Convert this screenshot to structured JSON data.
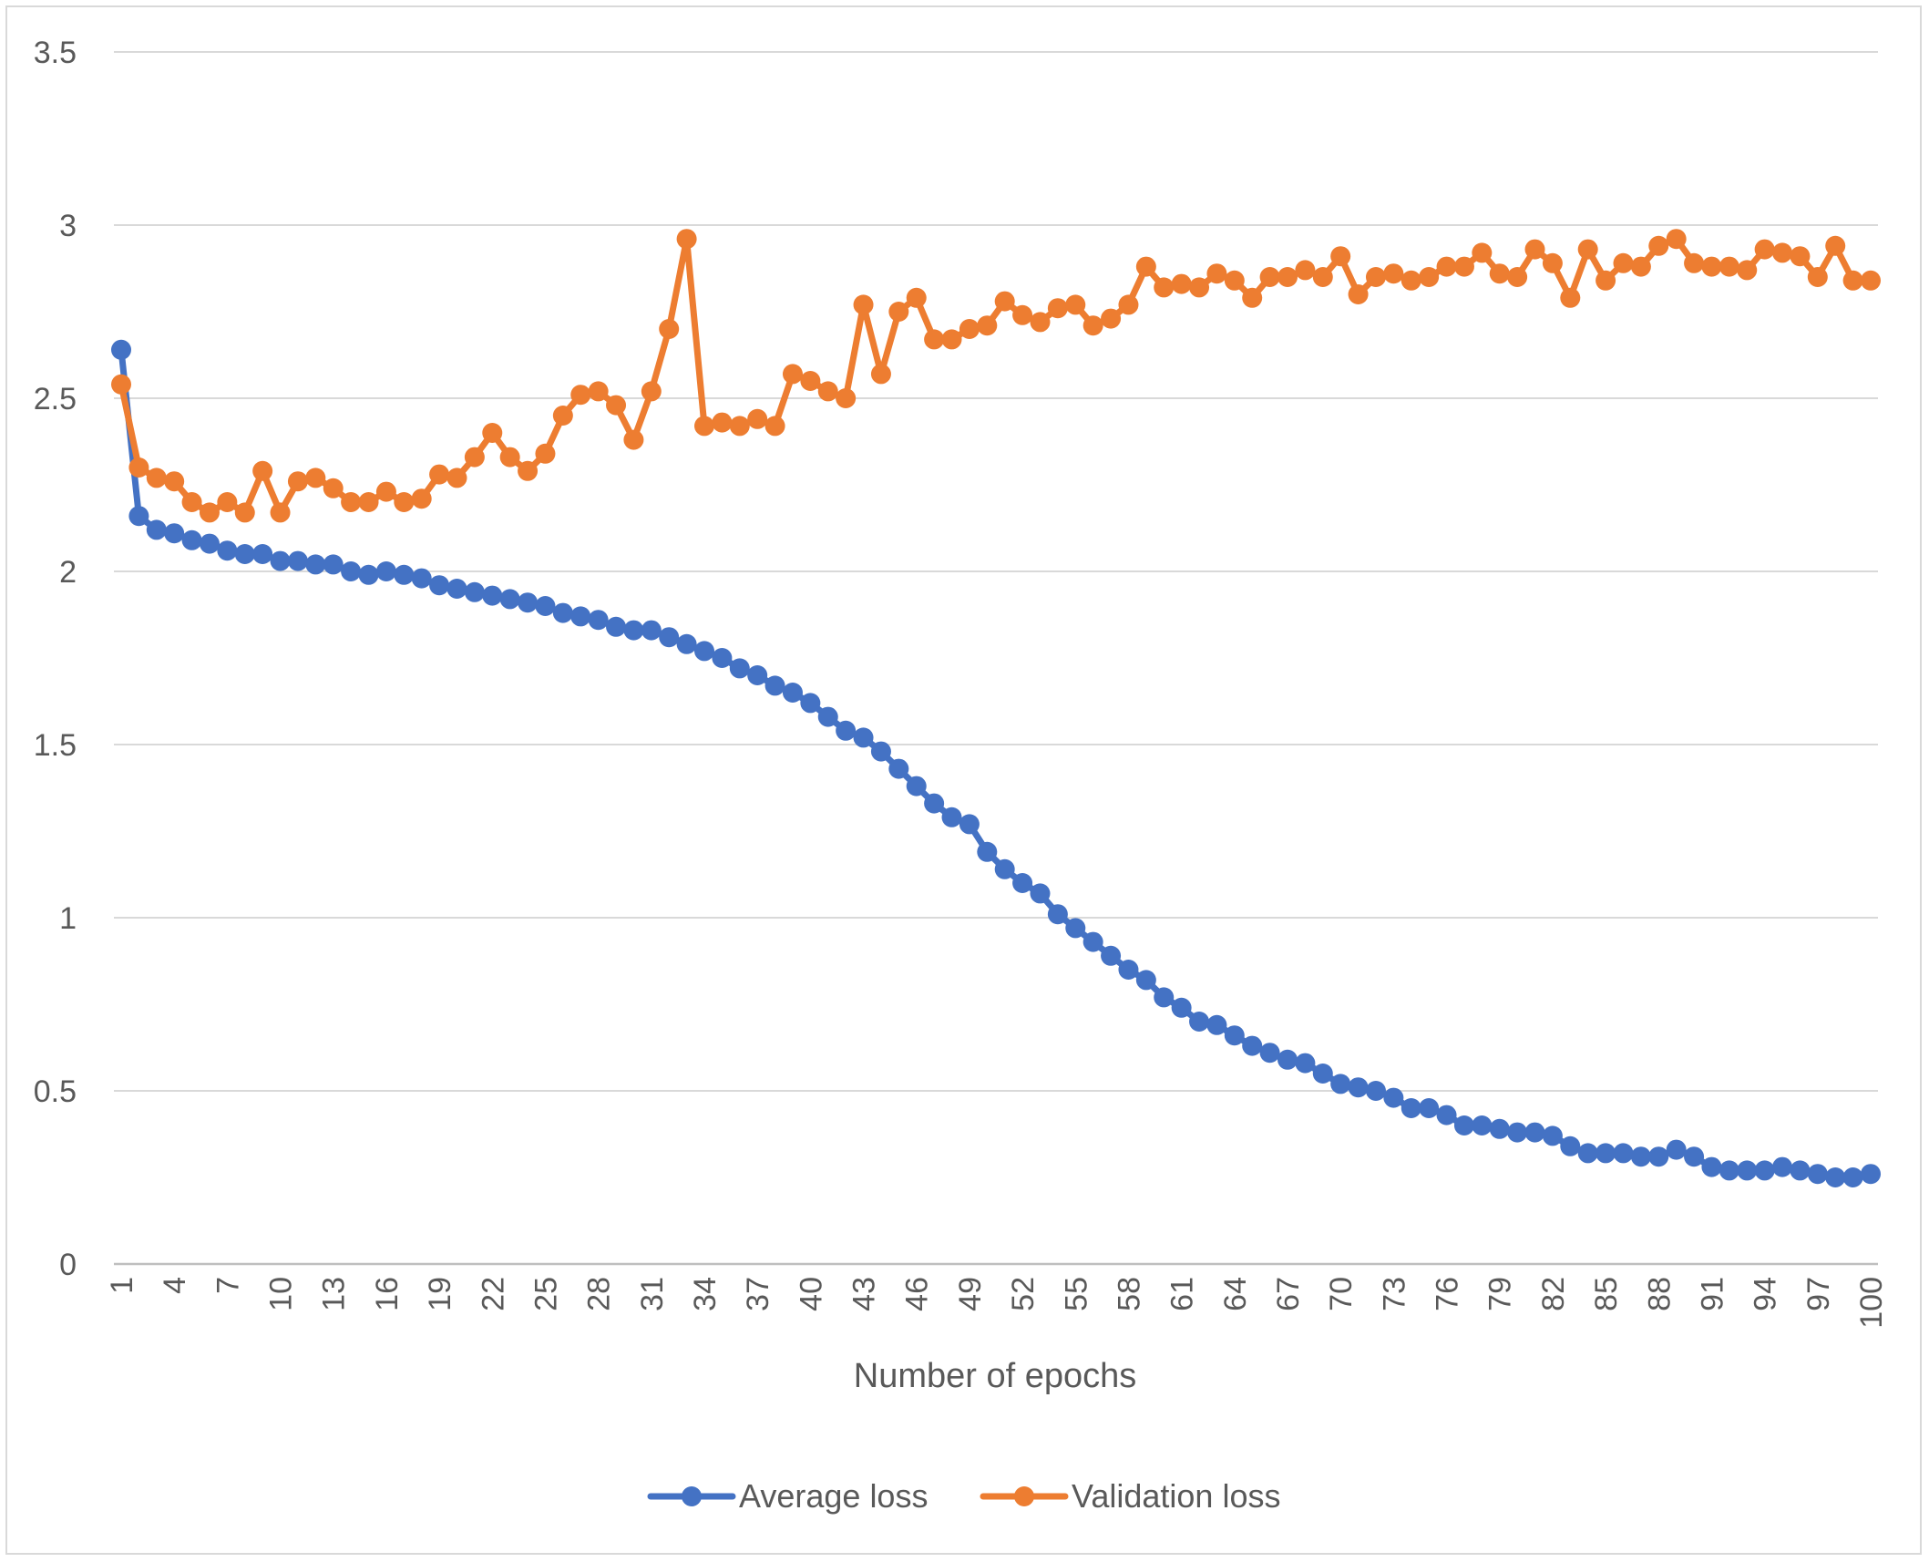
{
  "chart_data": {
    "type": "line",
    "title": "",
    "xlabel": "Number of epochs",
    "ylabel": "",
    "ylim": [
      0,
      3.5
    ],
    "yticks": [
      "0",
      "0.5",
      "1",
      "1.5",
      "2",
      "2.5",
      "3",
      "3.5"
    ],
    "xtick_labels": [
      1,
      4,
      7,
      10,
      13,
      16,
      19,
      22,
      25,
      28,
      31,
      34,
      37,
      40,
      43,
      46,
      49,
      52,
      55,
      58,
      61,
      64,
      67,
      70,
      73,
      76,
      79,
      82,
      85,
      88,
      91,
      94,
      97,
      100
    ],
    "x": [
      1,
      2,
      3,
      4,
      5,
      6,
      7,
      8,
      9,
      10,
      11,
      12,
      13,
      14,
      15,
      16,
      17,
      18,
      19,
      20,
      21,
      22,
      23,
      24,
      25,
      26,
      27,
      28,
      29,
      30,
      31,
      32,
      33,
      34,
      35,
      36,
      37,
      38,
      39,
      40,
      41,
      42,
      43,
      44,
      45,
      46,
      47,
      48,
      49,
      50,
      51,
      52,
      53,
      54,
      55,
      56,
      57,
      58,
      59,
      60,
      61,
      62,
      63,
      64,
      65,
      66,
      67,
      68,
      69,
      70,
      71,
      72,
      73,
      74,
      75,
      76,
      77,
      78,
      79,
      80,
      81,
      82,
      83,
      84,
      85,
      86,
      87,
      88,
      89,
      90,
      91,
      92,
      93,
      94,
      95,
      96,
      97,
      98,
      99,
      100
    ],
    "grid": true,
    "legend_position": "bottom",
    "series": [
      {
        "name": "Average loss",
        "color": "#4472c4",
        "values": [
          2.64,
          2.16,
          2.12,
          2.11,
          2.09,
          2.08,
          2.06,
          2.05,
          2.05,
          2.03,
          2.03,
          2.02,
          2.02,
          2.0,
          1.99,
          2.0,
          1.99,
          1.98,
          1.96,
          1.95,
          1.94,
          1.93,
          1.92,
          1.91,
          1.9,
          1.88,
          1.87,
          1.86,
          1.84,
          1.83,
          1.83,
          1.81,
          1.79,
          1.77,
          1.75,
          1.72,
          1.7,
          1.67,
          1.65,
          1.62,
          1.58,
          1.54,
          1.52,
          1.48,
          1.43,
          1.38,
          1.33,
          1.29,
          1.27,
          1.19,
          1.14,
          1.1,
          1.07,
          1.01,
          0.97,
          0.93,
          0.89,
          0.85,
          0.82,
          0.77,
          0.74,
          0.7,
          0.69,
          0.66,
          0.63,
          0.61,
          0.59,
          0.58,
          0.55,
          0.52,
          0.51,
          0.5,
          0.48,
          0.45,
          0.45,
          0.43,
          0.4,
          0.4,
          0.39,
          0.38,
          0.38,
          0.37,
          0.34,
          0.32,
          0.32,
          0.32,
          0.31,
          0.31,
          0.33,
          0.31,
          0.28,
          0.27,
          0.27,
          0.27,
          0.28,
          0.27,
          0.26,
          0.25,
          0.25,
          0.26
        ]
      },
      {
        "name": "Validation loss",
        "color": "#ed7d31",
        "values": [
          2.54,
          2.3,
          2.27,
          2.26,
          2.2,
          2.17,
          2.2,
          2.17,
          2.29,
          2.17,
          2.26,
          2.27,
          2.24,
          2.2,
          2.2,
          2.23,
          2.2,
          2.21,
          2.28,
          2.27,
          2.33,
          2.4,
          2.33,
          2.29,
          2.34,
          2.45,
          2.51,
          2.52,
          2.48,
          2.38,
          2.52,
          2.7,
          2.96,
          2.42,
          2.43,
          2.42,
          2.44,
          2.42,
          2.57,
          2.55,
          2.52,
          2.5,
          2.77,
          2.57,
          2.75,
          2.79,
          2.67,
          2.67,
          2.7,
          2.71,
          2.78,
          2.74,
          2.72,
          2.76,
          2.77,
          2.71,
          2.73,
          2.77,
          2.88,
          2.82,
          2.83,
          2.82,
          2.86,
          2.84,
          2.79,
          2.85,
          2.85,
          2.87,
          2.85,
          2.91,
          2.8,
          2.85,
          2.86,
          2.84,
          2.85,
          2.88,
          2.88,
          2.92,
          2.86,
          2.85,
          2.93,
          2.89,
          2.79,
          2.93,
          2.84,
          2.89,
          2.88,
          2.94,
          2.96,
          2.89,
          2.88,
          2.88,
          2.87,
          2.93,
          2.92,
          2.91,
          2.85,
          2.94,
          2.84,
          2.84
        ]
      }
    ]
  }
}
